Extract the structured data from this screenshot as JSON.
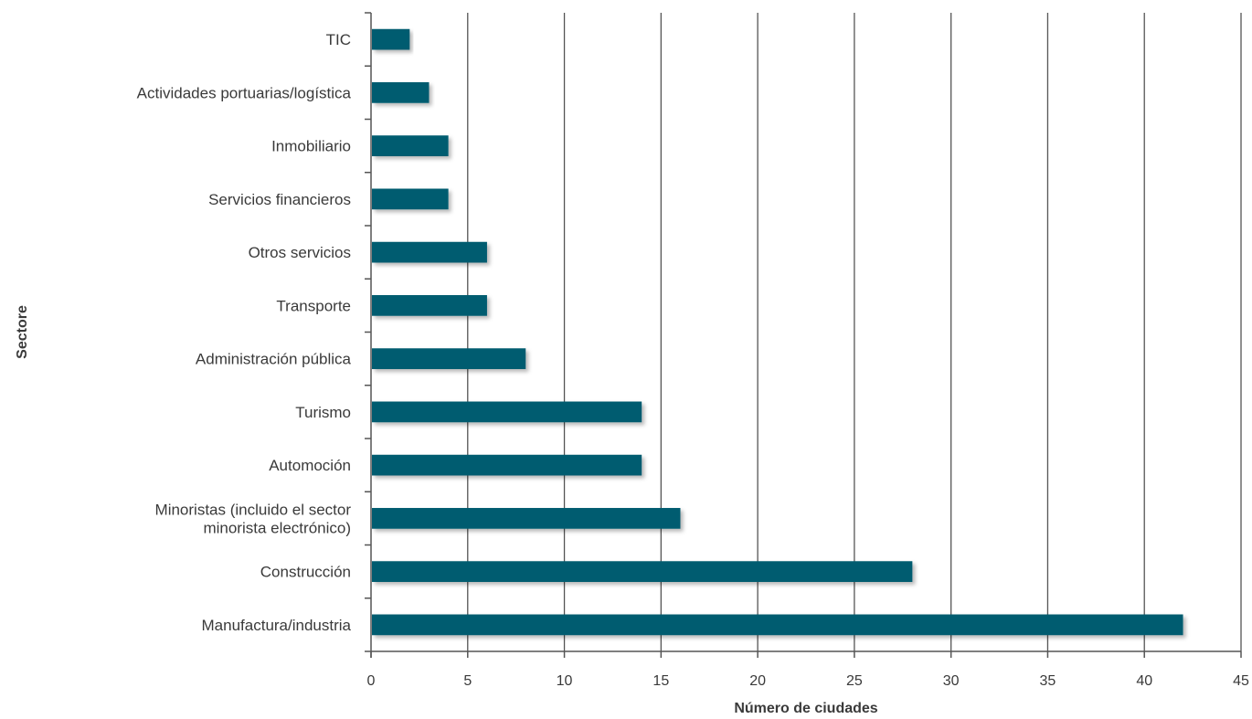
{
  "chart_data": {
    "type": "bar",
    "orientation": "horizontal",
    "categories": [
      "TIC",
      "Actividades portuarias/logística",
      "Inmobiliario",
      "Servicios financieros",
      "Otros servicios",
      "Transporte",
      "Administración pública",
      "Turismo",
      "Automoción",
      "Minoristas (incluido el sector minorista electrónico)",
      "Construcción",
      "Manufactura/industria"
    ],
    "category_lines": [
      [
        "TIC"
      ],
      [
        "Actividades portuarias/logística"
      ],
      [
        "Inmobiliario"
      ],
      [
        "Servicios financieros"
      ],
      [
        "Otros servicios"
      ],
      [
        "Transporte"
      ],
      [
        "Administración pública"
      ],
      [
        "Turismo"
      ],
      [
        "Automoción"
      ],
      [
        "Minoristas (incluido el sector",
        "minorista electrónico)"
      ],
      [
        "Construcción"
      ],
      [
        "Manufactura/industria"
      ]
    ],
    "values": [
      2,
      3,
      4,
      4,
      6,
      6,
      8,
      14,
      14,
      16,
      28,
      42
    ],
    "xlabel": "Número de ciudades",
    "ylabel": "Sectore",
    "xlim": [
      0,
      45
    ],
    "xticks": [
      0,
      5,
      10,
      15,
      20,
      25,
      30,
      35,
      40,
      45
    ],
    "grid": "vertical",
    "legend": "none",
    "bar_color": "#005b70",
    "grid_color": "#555555",
    "text_color": "#3a3a3a"
  }
}
